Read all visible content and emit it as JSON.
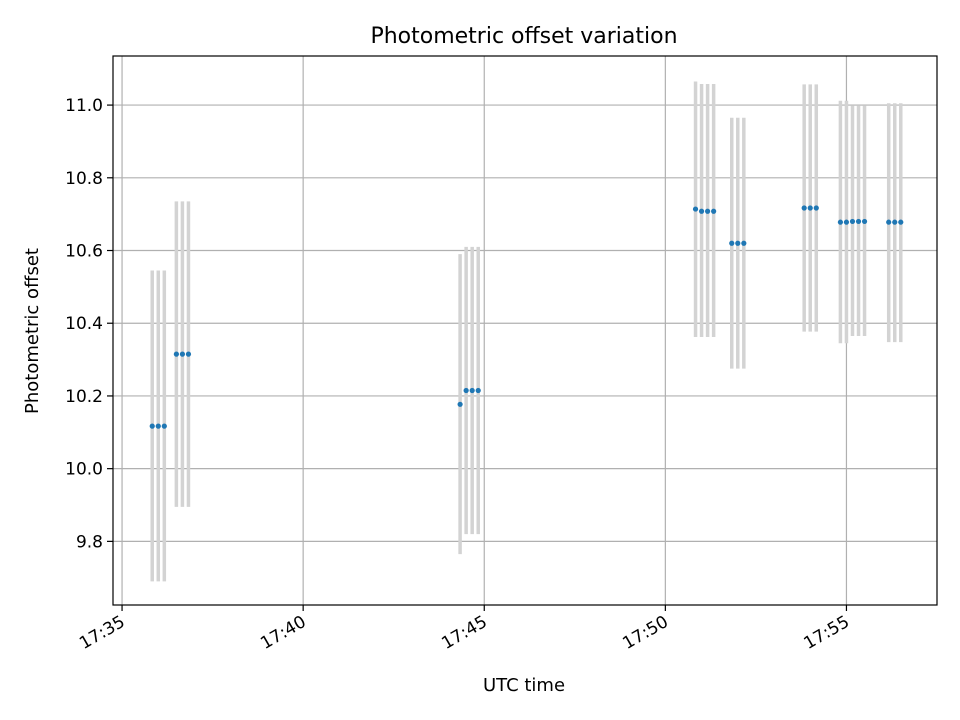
{
  "chart_data": {
    "type": "scatter",
    "title": "Photometric offset variation",
    "xlabel": "UTC time",
    "ylabel": "Photometric offset",
    "x_axis_kind": "time",
    "xlim": [
      "17:34:45",
      "17:57:30"
    ],
    "ylim": [
      9.625,
      11.135
    ],
    "x_ticks": [
      "17:35",
      "17:40",
      "17:45",
      "17:50",
      "17:55"
    ],
    "y_ticks": [
      "9.8",
      "10.0",
      "10.2",
      "10.4",
      "10.6",
      "10.8",
      "11.0"
    ],
    "grid": true,
    "legend": "none",
    "marker_color": "#1f77b4",
    "errorbar_color": "#d3d3d3",
    "series": [
      {
        "points": [
          {
            "time": "17:35:50",
            "y": 10.117,
            "ylow": 9.69,
            "yhigh": 10.545
          },
          {
            "time": "17:36:00",
            "y": 10.117,
            "ylow": 9.69,
            "yhigh": 10.545
          },
          {
            "time": "17:36:10",
            "y": 10.117,
            "ylow": 9.69,
            "yhigh": 10.545
          },
          {
            "time": "17:36:30",
            "y": 10.315,
            "ylow": 9.895,
            "yhigh": 10.735
          },
          {
            "time": "17:36:40",
            "y": 10.315,
            "ylow": 9.895,
            "yhigh": 10.735
          },
          {
            "time": "17:36:50",
            "y": 10.315,
            "ylow": 9.895,
            "yhigh": 10.735
          },
          {
            "time": "17:44:20",
            "y": 10.177,
            "ylow": 9.765,
            "yhigh": 10.59
          },
          {
            "time": "17:44:30",
            "y": 10.215,
            "ylow": 9.82,
            "yhigh": 10.61
          },
          {
            "time": "17:44:40",
            "y": 10.215,
            "ylow": 9.82,
            "yhigh": 10.61
          },
          {
            "time": "17:44:50",
            "y": 10.215,
            "ylow": 9.82,
            "yhigh": 10.61
          },
          {
            "time": "17:50:50",
            "y": 10.714,
            "ylow": 10.362,
            "yhigh": 11.065
          },
          {
            "time": "17:51:00",
            "y": 10.708,
            "ylow": 10.362,
            "yhigh": 11.058
          },
          {
            "time": "17:51:10",
            "y": 10.708,
            "ylow": 10.362,
            "yhigh": 11.058
          },
          {
            "time": "17:51:20",
            "y": 10.708,
            "ylow": 10.362,
            "yhigh": 11.058
          },
          {
            "time": "17:51:50",
            "y": 10.62,
            "ylow": 10.275,
            "yhigh": 10.965
          },
          {
            "time": "17:52:00",
            "y": 10.62,
            "ylow": 10.275,
            "yhigh": 10.965
          },
          {
            "time": "17:52:10",
            "y": 10.62,
            "ylow": 10.275,
            "yhigh": 10.965
          },
          {
            "time": "17:53:50",
            "y": 10.717,
            "ylow": 10.377,
            "yhigh": 11.057
          },
          {
            "time": "17:54:00",
            "y": 10.717,
            "ylow": 10.377,
            "yhigh": 11.057
          },
          {
            "time": "17:54:10",
            "y": 10.717,
            "ylow": 10.377,
            "yhigh": 11.057
          },
          {
            "time": "17:54:50",
            "y": 10.678,
            "ylow": 10.345,
            "yhigh": 11.012
          },
          {
            "time": "17:55:00",
            "y": 10.678,
            "ylow": 10.345,
            "yhigh": 11.012
          },
          {
            "time": "17:55:10",
            "y": 10.68,
            "ylow": 10.365,
            "yhigh": 10.998
          },
          {
            "time": "17:55:20",
            "y": 10.68,
            "ylow": 10.365,
            "yhigh": 10.998
          },
          {
            "time": "17:55:30",
            "y": 10.68,
            "ylow": 10.365,
            "yhigh": 10.998
          },
          {
            "time": "17:56:10",
            "y": 10.678,
            "ylow": 10.348,
            "yhigh": 11.005
          },
          {
            "time": "17:56:20",
            "y": 10.678,
            "ylow": 10.348,
            "yhigh": 11.005
          },
          {
            "time": "17:56:30",
            "y": 10.678,
            "ylow": 10.348,
            "yhigh": 11.005
          }
        ]
      }
    ]
  }
}
